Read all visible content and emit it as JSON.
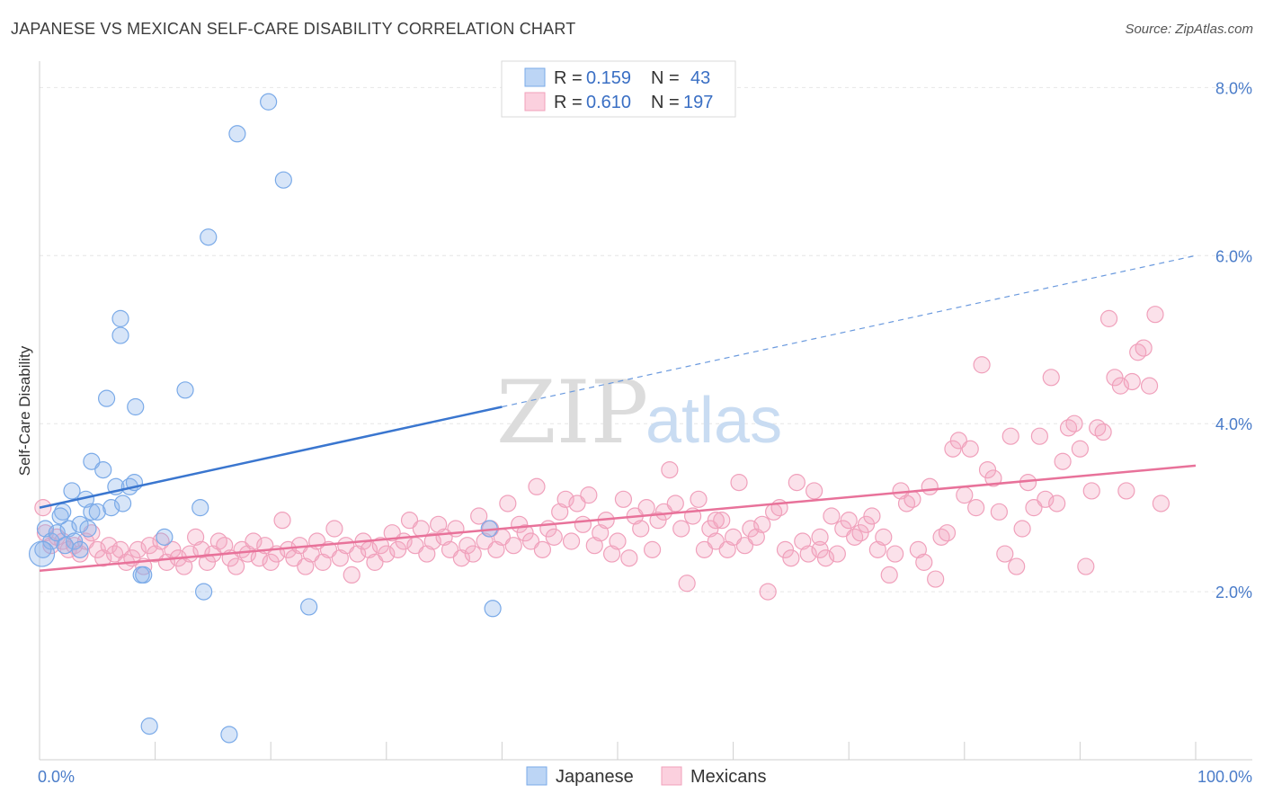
{
  "title": "JAPANESE VS MEXICAN SELF-CARE DISABILITY CORRELATION CHART",
  "source": "Source: ZipAtlas.com",
  "watermark": {
    "zip": "ZIP",
    "atlas": "atlas"
  },
  "legend": {
    "rows": [
      {
        "r_label": "R =",
        "r_value": "0.159",
        "n_label": "N =",
        "n_value": "43",
        "color": "#7aaae8"
      },
      {
        "r_label": "R =",
        "r_value": "0.610",
        "n_label": "N =",
        "n_value": "197",
        "color": "#f0a0bb"
      }
    ]
  },
  "bottom_legend": [
    {
      "label": "Japanese",
      "color": "#7aaae8"
    },
    {
      "label": "Mexicans",
      "color": "#f0a0bb"
    }
  ],
  "chart_data": {
    "type": "scatter",
    "title": "JAPANESE VS MEXICAN SELF-CARE DISABILITY CORRELATION CHART",
    "xlabel": "",
    "ylabel": "Self-Care Disability",
    "xlim": [
      0,
      100
    ],
    "ylim": [
      0,
      8.4
    ],
    "x_tick_labels": [
      "0.0%",
      "100.0%"
    ],
    "y_ticks": [
      2,
      4,
      6,
      8
    ],
    "y_tick_labels": [
      "2.0%",
      "4.0%",
      "6.0%",
      "8.0%"
    ],
    "grid": true,
    "legend_position": "top-center",
    "series": [
      {
        "name": "Japanese",
        "color": "#7aaae8",
        "trend": {
          "x0": 0,
          "y0": 3.0,
          "x1": 40,
          "y1": 4.2,
          "dashed_to_x": 100,
          "dashed_to_y": 6.0
        },
        "points": [
          [
            0.3,
            2.5
          ],
          [
            0.5,
            2.75
          ],
          [
            1.0,
            2.6
          ],
          [
            1.5,
            2.7
          ],
          [
            2.0,
            2.95
          ],
          [
            2.5,
            2.75
          ],
          [
            2.8,
            3.2
          ],
          [
            3.0,
            2.6
          ],
          [
            3.5,
            2.5
          ],
          [
            3.5,
            2.8
          ],
          [
            4.0,
            3.1
          ],
          [
            4.2,
            2.75
          ],
          [
            4.5,
            2.95
          ],
          [
            4.5,
            3.55
          ],
          [
            5.0,
            2.95
          ],
          [
            5.5,
            3.45
          ],
          [
            5.8,
            4.3
          ],
          [
            6.2,
            3.0
          ],
          [
            6.6,
            3.25
          ],
          [
            7.0,
            5.25
          ],
          [
            7.2,
            3.05
          ],
          [
            7.0,
            5.05
          ],
          [
            7.8,
            3.25
          ],
          [
            8.2,
            3.3
          ],
          [
            8.3,
            4.2
          ],
          [
            8.8,
            2.2
          ],
          [
            9.0,
            2.2
          ],
          [
            9.5,
            0.4
          ],
          [
            10.8,
            2.65
          ],
          [
            12.6,
            4.4
          ],
          [
            13.9,
            3.0
          ],
          [
            14.2,
            2.0
          ],
          [
            14.6,
            6.22
          ],
          [
            16.4,
            0.3
          ],
          [
            17.1,
            7.45
          ],
          [
            19.8,
            7.83
          ],
          [
            21.1,
            6.9
          ],
          [
            23.3,
            1.82
          ],
          [
            38.9,
            2.75
          ],
          [
            39.2,
            1.8
          ],
          [
            0.2,
            2.45
          ],
          [
            1.8,
            2.9
          ],
          [
            2.2,
            2.55
          ]
        ]
      },
      {
        "name": "Mexicans",
        "color": "#f0a0bb",
        "trend": {
          "x0": 0,
          "y0": 2.25,
          "x1": 100,
          "y1": 3.5
        },
        "points": [
          [
            0.3,
            3.0
          ],
          [
            0.5,
            2.7
          ],
          [
            1.0,
            2.55
          ],
          [
            1.5,
            2.65
          ],
          [
            2.0,
            2.6
          ],
          [
            2.5,
            2.5
          ],
          [
            3.0,
            2.55
          ],
          [
            3.5,
            2.45
          ],
          [
            4.0,
            2.6
          ],
          [
            4.5,
            2.7
          ],
          [
            5.0,
            2.5
          ],
          [
            5.5,
            2.4
          ],
          [
            6.0,
            2.55
          ],
          [
            6.5,
            2.45
          ],
          [
            7.0,
            2.5
          ],
          [
            7.5,
            2.35
          ],
          [
            8.0,
            2.4
          ],
          [
            8.5,
            2.5
          ],
          [
            9.0,
            2.3
          ],
          [
            9.5,
            2.55
          ],
          [
            10.0,
            2.45
          ],
          [
            10.5,
            2.6
          ],
          [
            11.0,
            2.35
          ],
          [
            11.5,
            2.5
          ],
          [
            12.0,
            2.4
          ],
          [
            12.5,
            2.3
          ],
          [
            13.0,
            2.45
          ],
          [
            13.5,
            2.65
          ],
          [
            14.0,
            2.5
          ],
          [
            14.5,
            2.35
          ],
          [
            15.0,
            2.45
          ],
          [
            15.5,
            2.6
          ],
          [
            16.0,
            2.55
          ],
          [
            16.5,
            2.4
          ],
          [
            17.0,
            2.3
          ],
          [
            17.5,
            2.5
          ],
          [
            18.0,
            2.45
          ],
          [
            18.5,
            2.6
          ],
          [
            19.0,
            2.4
          ],
          [
            19.5,
            2.55
          ],
          [
            20.0,
            2.35
          ],
          [
            20.5,
            2.45
          ],
          [
            21.0,
            2.85
          ],
          [
            21.5,
            2.5
          ],
          [
            22.0,
            2.4
          ],
          [
            22.5,
            2.55
          ],
          [
            23.0,
            2.3
          ],
          [
            23.5,
            2.45
          ],
          [
            24.0,
            2.6
          ],
          [
            24.5,
            2.35
          ],
          [
            25.0,
            2.5
          ],
          [
            25.5,
            2.75
          ],
          [
            26.0,
            2.4
          ],
          [
            26.5,
            2.55
          ],
          [
            27.0,
            2.2
          ],
          [
            27.5,
            2.45
          ],
          [
            28.0,
            2.6
          ],
          [
            28.5,
            2.5
          ],
          [
            29.0,
            2.35
          ],
          [
            29.5,
            2.55
          ],
          [
            30.0,
            2.45
          ],
          [
            30.5,
            2.7
          ],
          [
            31.0,
            2.5
          ],
          [
            31.5,
            2.6
          ],
          [
            32.0,
            2.85
          ],
          [
            32.5,
            2.55
          ],
          [
            33.0,
            2.75
          ],
          [
            33.5,
            2.45
          ],
          [
            34.0,
            2.6
          ],
          [
            34.5,
            2.8
          ],
          [
            35.0,
            2.65
          ],
          [
            35.5,
            2.5
          ],
          [
            36.0,
            2.75
          ],
          [
            36.5,
            2.4
          ],
          [
            37.0,
            2.55
          ],
          [
            37.5,
            2.45
          ],
          [
            38.0,
            2.9
          ],
          [
            38.5,
            2.6
          ],
          [
            39.0,
            2.75
          ],
          [
            39.5,
            2.5
          ],
          [
            40.0,
            2.65
          ],
          [
            40.5,
            3.05
          ],
          [
            41.0,
            2.55
          ],
          [
            41.5,
            2.8
          ],
          [
            42.0,
            2.7
          ],
          [
            42.5,
            2.6
          ],
          [
            43.0,
            3.25
          ],
          [
            43.5,
            2.5
          ],
          [
            44.0,
            2.75
          ],
          [
            44.5,
            2.65
          ],
          [
            45.0,
            2.95
          ],
          [
            45.5,
            3.1
          ],
          [
            46.0,
            2.6
          ],
          [
            46.5,
            3.05
          ],
          [
            47.0,
            2.8
          ],
          [
            47.5,
            3.15
          ],
          [
            48.0,
            2.55
          ],
          [
            48.5,
            2.7
          ],
          [
            49.0,
            2.85
          ],
          [
            49.5,
            2.45
          ],
          [
            50.0,
            2.6
          ],
          [
            50.5,
            3.1
          ],
          [
            51.0,
            2.4
          ],
          [
            51.5,
            2.9
          ],
          [
            52.0,
            2.75
          ],
          [
            52.5,
            3.0
          ],
          [
            53.0,
            2.5
          ],
          [
            53.5,
            2.85
          ],
          [
            54.0,
            2.95
          ],
          [
            54.5,
            3.45
          ],
          [
            55.0,
            3.05
          ],
          [
            55.5,
            2.75
          ],
          [
            56.0,
            2.1
          ],
          [
            56.5,
            2.9
          ],
          [
            57.0,
            3.1
          ],
          [
            57.5,
            2.5
          ],
          [
            58.0,
            2.75
          ],
          [
            58.5,
            2.6
          ],
          [
            59.0,
            2.85
          ],
          [
            59.5,
            2.5
          ],
          [
            60.0,
            2.65
          ],
          [
            60.5,
            3.3
          ],
          [
            61.0,
            2.55
          ],
          [
            61.5,
            2.75
          ],
          [
            62.0,
            2.65
          ],
          [
            62.5,
            2.8
          ],
          [
            63.0,
            2.0
          ],
          [
            63.5,
            2.95
          ],
          [
            64.0,
            3.0
          ],
          [
            64.5,
            2.5
          ],
          [
            65.0,
            2.4
          ],
          [
            65.5,
            3.3
          ],
          [
            66.0,
            2.6
          ],
          [
            66.5,
            2.45
          ],
          [
            67.0,
            3.2
          ],
          [
            67.5,
            2.5
          ],
          [
            68.0,
            2.4
          ],
          [
            68.5,
            2.9
          ],
          [
            69.0,
            2.45
          ],
          [
            69.5,
            2.75
          ],
          [
            70.0,
            2.85
          ],
          [
            70.5,
            2.65
          ],
          [
            71.0,
            2.7
          ],
          [
            71.5,
            2.8
          ],
          [
            72.0,
            2.9
          ],
          [
            72.5,
            2.5
          ],
          [
            73.0,
            2.65
          ],
          [
            73.5,
            2.2
          ],
          [
            74.0,
            2.45
          ],
          [
            74.5,
            3.2
          ],
          [
            75.0,
            3.05
          ],
          [
            75.5,
            3.1
          ],
          [
            76.0,
            2.5
          ],
          [
            76.5,
            2.35
          ],
          [
            77.0,
            3.25
          ],
          [
            77.5,
            2.15
          ],
          [
            78.0,
            2.65
          ],
          [
            78.5,
            2.7
          ],
          [
            79.0,
            3.7
          ],
          [
            79.5,
            3.8
          ],
          [
            80.0,
            3.15
          ],
          [
            80.5,
            3.7
          ],
          [
            81.0,
            3.0
          ],
          [
            81.5,
            4.7
          ],
          [
            82.0,
            3.45
          ],
          [
            82.5,
            3.35
          ],
          [
            83.0,
            2.95
          ],
          [
            83.5,
            2.45
          ],
          [
            84.0,
            3.85
          ],
          [
            84.5,
            2.3
          ],
          [
            85.0,
            2.75
          ],
          [
            85.5,
            3.3
          ],
          [
            86.0,
            3.0
          ],
          [
            86.5,
            3.85
          ],
          [
            87.0,
            3.1
          ],
          [
            87.5,
            4.55
          ],
          [
            88.0,
            3.05
          ],
          [
            88.5,
            3.55
          ],
          [
            89.0,
            3.95
          ],
          [
            89.5,
            4.0
          ],
          [
            90.0,
            3.7
          ],
          [
            90.5,
            2.3
          ],
          [
            91.0,
            3.2
          ],
          [
            91.5,
            3.95
          ],
          [
            92.0,
            3.9
          ],
          [
            92.5,
            5.25
          ],
          [
            93.0,
            4.55
          ],
          [
            93.5,
            4.45
          ],
          [
            94.0,
            3.2
          ],
          [
            94.5,
            4.5
          ],
          [
            95.0,
            4.85
          ],
          [
            95.5,
            4.9
          ],
          [
            96.0,
            4.45
          ],
          [
            96.5,
            5.3
          ],
          [
            97.0,
            3.05
          ],
          [
            58.5,
            2.85
          ],
          [
            67.5,
            2.65
          ]
        ]
      }
    ]
  }
}
